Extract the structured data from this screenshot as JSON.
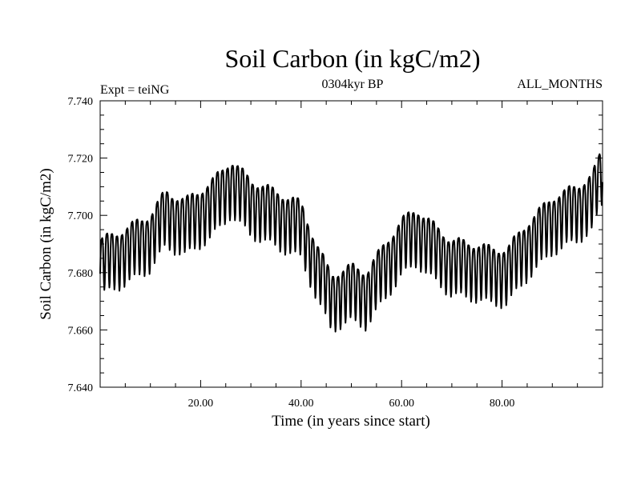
{
  "chart_data": {
    "type": "line",
    "title": "Soil Carbon (in kgC/m2)",
    "subtitle_left": "Expt = teiNG",
    "subtitle_center": "0304kyr BP",
    "subtitle_right": "ALL_MONTHS",
    "xlabel": "Time (in years since start)",
    "ylabel": "Soil Carbon (in kgC/m2)",
    "xlim": [
      0,
      100
    ],
    "ylim": [
      7.64,
      7.74
    ],
    "x_ticks": [
      20,
      40,
      60,
      80
    ],
    "x_tick_labels": [
      "20.00",
      "40.00",
      "60.00",
      "80.00"
    ],
    "y_ticks": [
      7.64,
      7.66,
      7.68,
      7.7,
      7.72,
      7.74
    ],
    "y_tick_labels": [
      "7.640",
      "7.660",
      "7.680",
      "7.700",
      "7.720",
      "7.740"
    ],
    "grid": false,
    "series": [
      {
        "name": "Soil Carbon",
        "color": "#000000",
        "note": "monthly-resolution values; annual-cycle oscillation superimposed on slow trend",
        "trend_x": [
          0,
          5,
          10,
          13,
          17,
          22,
          26,
          30,
          35,
          40,
          43,
          46,
          50,
          53,
          56,
          60,
          63,
          66,
          70,
          74,
          78,
          81,
          85,
          90,
          95,
          98,
          100
        ],
        "trend_y": [
          7.684,
          7.688,
          7.693,
          7.701,
          7.698,
          7.704,
          7.712,
          7.705,
          7.701,
          7.697,
          7.683,
          7.672,
          7.675,
          7.673,
          7.681,
          7.691,
          7.695,
          7.69,
          7.684,
          7.683,
          7.681,
          7.681,
          7.69,
          7.699,
          7.703,
          7.707,
          7.716
        ],
        "amplitude": 0.0095
      }
    ]
  }
}
